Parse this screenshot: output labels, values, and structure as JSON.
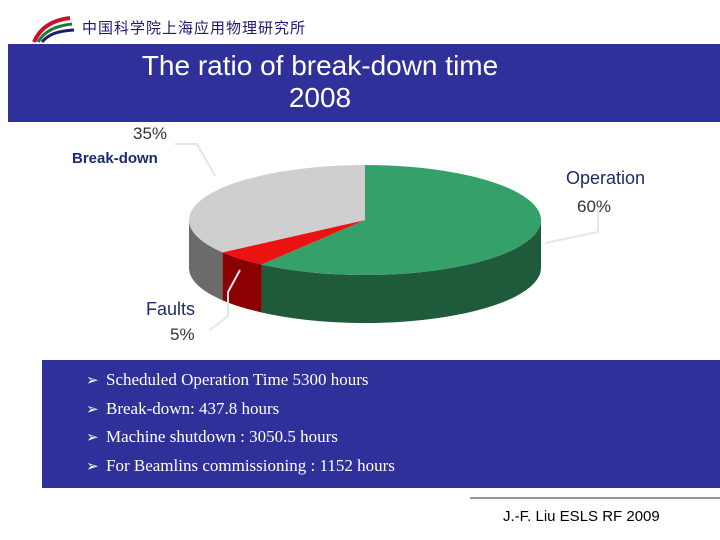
{
  "logo": {
    "text": "中国科学院上海应用物理研究所"
  },
  "slide": {
    "title_line1": "The ratio of break-down time",
    "title_line2": "2008"
  },
  "chart_data": {
    "type": "pie",
    "title": "",
    "slices": [
      {
        "label": "Operation",
        "value": 60,
        "percent_label": "60%",
        "color": "#36a06a",
        "side_color": "#1f5a3a"
      },
      {
        "label": "Faults",
        "value": 5,
        "percent_label": "5%",
        "color": "#ee1111",
        "side_color": "#8b0000"
      },
      {
        "label": "Break-down",
        "value": 35,
        "percent_label": "35%",
        "color": "#cfcfcf",
        "side_color": "#6b6b6b"
      }
    ],
    "style": "3d"
  },
  "bullets": [
    "Scheduled Operation Time 5300 hours",
    "Break-down:    437.8 hours",
    "Machine shutdown :   3050.5 hours",
    "For Beamlins commissioning :  1152 hours"
  ],
  "bullet_icon": "arrowhead-bullet-icon",
  "footer": {
    "credit": "J.-F. Liu ESLS RF 2009"
  },
  "colors": {
    "band": "#30309a",
    "text_on_band": "#ffffff"
  }
}
